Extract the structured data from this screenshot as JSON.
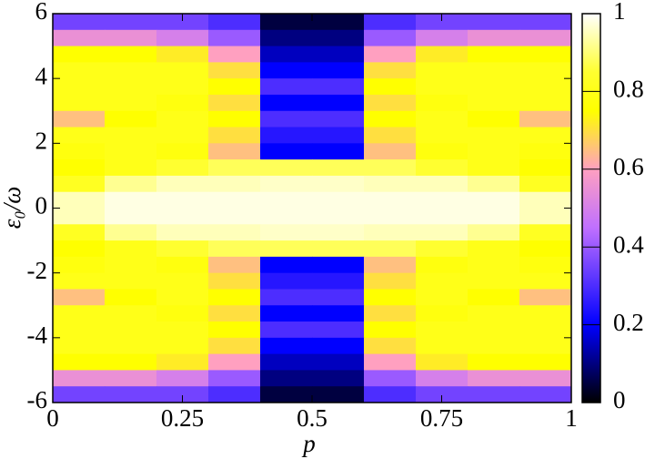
{
  "chart_data": {
    "type": "heatmap",
    "xlabel": "p",
    "ylabel": "ε₀/ω",
    "xlim": [
      0,
      1
    ],
    "xticks": [
      0,
      0.25,
      0.5,
      0.75,
      1
    ],
    "ylim": [
      -6,
      6
    ],
    "yticks": [
      -6,
      -4,
      -2,
      0,
      2,
      4,
      6
    ],
    "clim": [
      0,
      1
    ],
    "cticks": [
      0,
      0.2,
      0.4,
      0.6,
      0.8,
      1
    ],
    "colorscale": [
      [
        0,
        "#000000"
      ],
      [
        0.2,
        "#0000ff"
      ],
      [
        0.45,
        "#c070ff"
      ],
      [
        0.6,
        "#ffa0c0"
      ],
      [
        0.75,
        "#ffff00"
      ],
      [
        0.85,
        "#ffff30"
      ],
      [
        1,
        "#ffffff"
      ]
    ],
    "x": [
      0.05,
      0.15,
      0.25,
      0.35,
      0.45,
      0.55,
      0.65,
      0.75,
      0.85,
      0.95
    ],
    "y": [
      5.75,
      5.25,
      4.75,
      4.25,
      3.75,
      3.25,
      2.75,
      2.25,
      1.75,
      1.25,
      0.75,
      0.25,
      -0.25,
      -0.75,
      -1.25,
      -1.75,
      -2.25,
      -2.75,
      -3.25,
      -3.75,
      -4.25,
      -4.75,
      -5.25,
      -5.75
    ],
    "z": [
      [
        0.35,
        0.35,
        0.35,
        0.3,
        0.05,
        0.05,
        0.3,
        0.35,
        0.35,
        0.35
      ],
      [
        0.55,
        0.55,
        0.5,
        0.4,
        0.1,
        0.1,
        0.4,
        0.5,
        0.55,
        0.55
      ],
      [
        0.75,
        0.75,
        0.72,
        0.6,
        0.15,
        0.15,
        0.6,
        0.72,
        0.75,
        0.75
      ],
      [
        0.8,
        0.8,
        0.8,
        0.7,
        0.2,
        0.2,
        0.7,
        0.8,
        0.8,
        0.8
      ],
      [
        0.8,
        0.8,
        0.8,
        0.75,
        0.3,
        0.3,
        0.75,
        0.8,
        0.8,
        0.8
      ],
      [
        0.8,
        0.8,
        0.78,
        0.7,
        0.2,
        0.2,
        0.7,
        0.78,
        0.8,
        0.8
      ],
      [
        0.65,
        0.75,
        0.8,
        0.75,
        0.3,
        0.3,
        0.75,
        0.8,
        0.75,
        0.65
      ],
      [
        0.8,
        0.8,
        0.8,
        0.7,
        0.25,
        0.25,
        0.7,
        0.8,
        0.8,
        0.8
      ],
      [
        0.78,
        0.8,
        0.78,
        0.65,
        0.2,
        0.2,
        0.65,
        0.78,
        0.8,
        0.78
      ],
      [
        0.75,
        0.8,
        0.85,
        0.88,
        0.88,
        0.88,
        0.88,
        0.85,
        0.8,
        0.75
      ],
      [
        0.82,
        0.92,
        0.95,
        0.95,
        0.96,
        0.96,
        0.95,
        0.95,
        0.92,
        0.82
      ],
      [
        0.95,
        0.98,
        0.98,
        0.98,
        0.98,
        0.98,
        0.98,
        0.98,
        0.98,
        0.95
      ],
      [
        0.95,
        0.98,
        0.98,
        0.98,
        0.98,
        0.98,
        0.98,
        0.98,
        0.98,
        0.95
      ],
      [
        0.82,
        0.92,
        0.95,
        0.95,
        0.96,
        0.96,
        0.95,
        0.95,
        0.92,
        0.82
      ],
      [
        0.75,
        0.8,
        0.85,
        0.88,
        0.88,
        0.88,
        0.88,
        0.85,
        0.8,
        0.75
      ],
      [
        0.78,
        0.8,
        0.78,
        0.65,
        0.2,
        0.2,
        0.65,
        0.78,
        0.8,
        0.78
      ],
      [
        0.8,
        0.8,
        0.8,
        0.7,
        0.25,
        0.25,
        0.7,
        0.8,
        0.8,
        0.8
      ],
      [
        0.65,
        0.75,
        0.8,
        0.75,
        0.3,
        0.3,
        0.75,
        0.8,
        0.75,
        0.65
      ],
      [
        0.8,
        0.8,
        0.78,
        0.7,
        0.2,
        0.2,
        0.7,
        0.78,
        0.8,
        0.8
      ],
      [
        0.8,
        0.8,
        0.8,
        0.75,
        0.3,
        0.3,
        0.75,
        0.8,
        0.8,
        0.8
      ],
      [
        0.8,
        0.8,
        0.8,
        0.7,
        0.2,
        0.2,
        0.7,
        0.8,
        0.8,
        0.8
      ],
      [
        0.75,
        0.75,
        0.72,
        0.6,
        0.15,
        0.15,
        0.6,
        0.72,
        0.75,
        0.75
      ],
      [
        0.55,
        0.55,
        0.5,
        0.4,
        0.1,
        0.1,
        0.4,
        0.5,
        0.55,
        0.55
      ],
      [
        0.35,
        0.35,
        0.35,
        0.3,
        0.05,
        0.05,
        0.3,
        0.35,
        0.35,
        0.35
      ]
    ]
  }
}
